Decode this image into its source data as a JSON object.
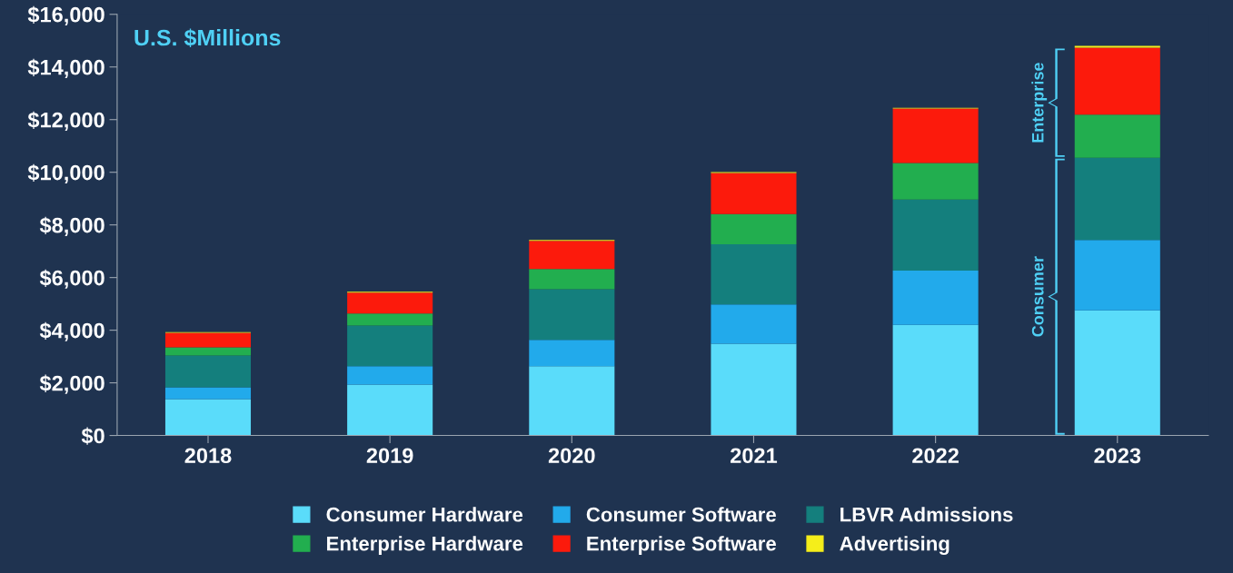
{
  "chart_data": {
    "type": "bar",
    "stacked": true,
    "subtitle": "U.S. $Millions",
    "categories": [
      "2018",
      "2019",
      "2020",
      "2021",
      "2022",
      "2023"
    ],
    "series": [
      {
        "name": "Consumer Hardware",
        "color": "#5adcfa",
        "values": [
          1380,
          1930,
          2630,
          3490,
          4200,
          4750
        ]
      },
      {
        "name": "Consumer Software",
        "color": "#22aaeb",
        "values": [
          450,
          700,
          1000,
          1490,
          2060,
          2680
        ]
      },
      {
        "name": "LBVR Admissions",
        "color": "#147f7d",
        "values": [
          1210,
          1550,
          1930,
          2280,
          2700,
          3120
        ]
      },
      {
        "name": "Enterprise Hardware",
        "color": "#22ae4f",
        "values": [
          310,
          450,
          760,
          1150,
          1390,
          1640
        ]
      },
      {
        "name": "Enterprise Software",
        "color": "#fc1a0c",
        "values": [
          550,
          800,
          1070,
          1560,
          2070,
          2540
        ]
      },
      {
        "name": "Advertising",
        "color": "#f5ee1a",
        "values": [
          30,
          30,
          40,
          40,
          30,
          70
        ]
      }
    ],
    "ylim": [
      0,
      16000
    ],
    "yticks": [
      {
        "value": 0,
        "label": "$0"
      },
      {
        "value": 2000,
        "label": "$2,000"
      },
      {
        "value": 4000,
        "label": "$4,000"
      },
      {
        "value": 6000,
        "label": "$6,000"
      },
      {
        "value": 8000,
        "label": "$8,000"
      },
      {
        "value": 10000,
        "label": "$10,000"
      },
      {
        "value": 12000,
        "label": "$12,000"
      },
      {
        "value": 14000,
        "label": "$14,000"
      },
      {
        "value": 16000,
        "label": "$16,000"
      }
    ],
    "annotations": [
      "Enterprise",
      "Consumer"
    ],
    "grid": false,
    "legend": "bottom"
  }
}
